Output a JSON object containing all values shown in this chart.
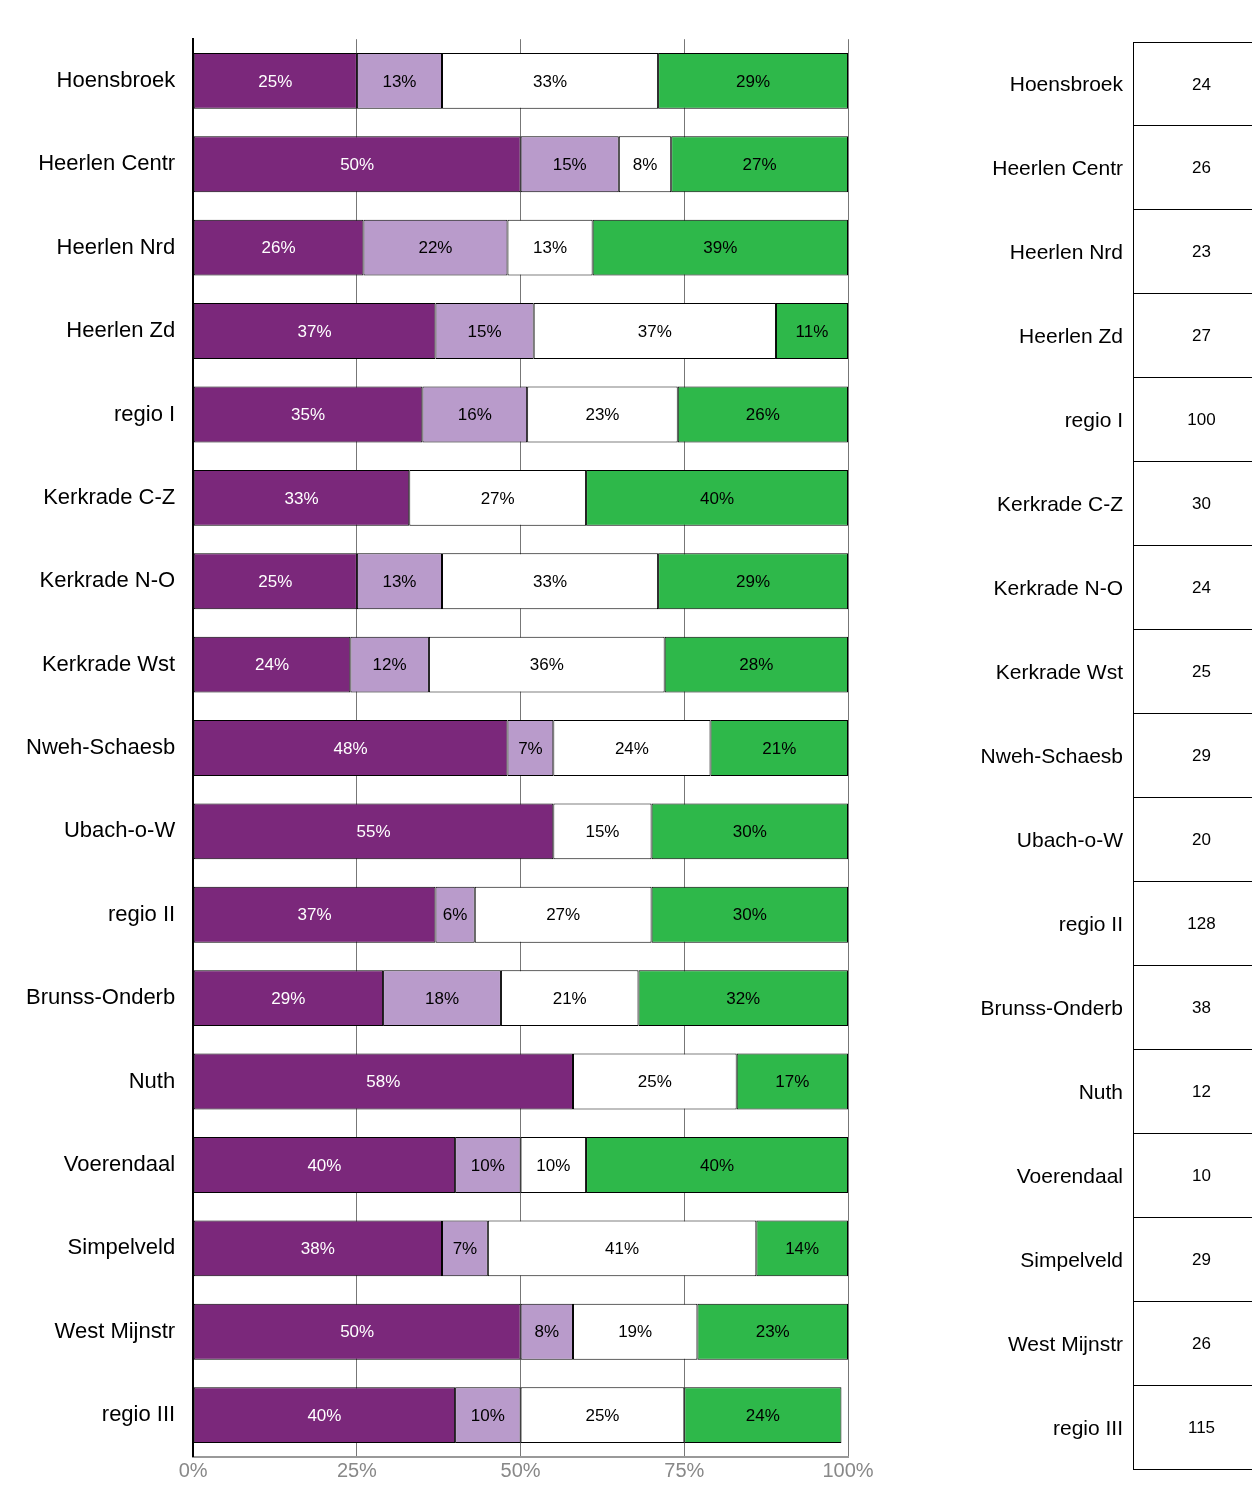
{
  "chart_data": [
    {
      "type": "bar",
      "orientation": "horizontal",
      "stacked": true,
      "categories": [
        "Hoensbroek",
        "Heerlen Centr",
        "Heerlen Nrd",
        "Heerlen Zd",
        "regio I",
        "Kerkrade C-Z",
        "Kerkrade N-O",
        "Kerkrade Wst",
        "Nweh-Schaesb",
        "Ubach-o-W",
        "regio II",
        "Brunss-Onderb",
        "Nuth",
        "Voerendaal",
        "Simpelveld",
        "West Mijnstr",
        "regio III"
      ],
      "series": [
        {
          "color": "#7b287b",
          "values": [
            25,
            50,
            26,
            37,
            35,
            33,
            25,
            24,
            48,
            55,
            37,
            29,
            58,
            40,
            38,
            50,
            40
          ],
          "value_labels": [
            "25%",
            "50%",
            "26%",
            "37%",
            "35%",
            "33%",
            "25%",
            "24%",
            "48%",
            "55%",
            "37%",
            "29%",
            "58%",
            "40%",
            "38%",
            "50%",
            "40%"
          ]
        },
        {
          "color": "#b99bcb",
          "values": [
            13,
            15,
            22,
            15,
            16,
            null,
            13,
            12,
            7,
            null,
            6,
            18,
            null,
            10,
            7,
            8,
            10
          ],
          "value_labels": [
            "13%",
            "15%",
            "22%",
            "15%",
            "16%",
            null,
            "13%",
            "12%",
            "7%",
            null,
            "6%",
            "18%",
            null,
            "10%",
            "7%",
            "8%",
            "10%"
          ]
        },
        {
          "color": "#ffffff",
          "values": [
            33,
            8,
            13,
            37,
            23,
            27,
            33,
            36,
            24,
            15,
            27,
            21,
            25,
            10,
            41,
            19,
            25
          ],
          "value_labels": [
            "33%",
            "8%",
            "13%",
            "37%",
            "23%",
            "27%",
            "33%",
            "36%",
            "24%",
            "15%",
            "27%",
            "21%",
            "25%",
            "10%",
            "41%",
            "19%",
            "25%"
          ]
        },
        {
          "color": "#2eb84a",
          "values": [
            29,
            27,
            39,
            11,
            26,
            40,
            29,
            28,
            21,
            30,
            30,
            32,
            17,
            40,
            14,
            23,
            24
          ],
          "value_labels": [
            "29%",
            "27%",
            "39%",
            "11%",
            "26%",
            "40%",
            "29%",
            "28%",
            "21%",
            "30%",
            "30%",
            "32%",
            "17%",
            "40%",
            "14%",
            "23%",
            "24%"
          ]
        }
      ],
      "xlim": [
        0,
        100
      ],
      "xticks": [
        {
          "value": 0,
          "label": "0%"
        },
        {
          "value": 25,
          "label": "25%"
        },
        {
          "value": 50,
          "label": "50%"
        },
        {
          "value": 75,
          "label": "75%"
        },
        {
          "value": 100,
          "label": "100%"
        }
      ],
      "grid": "x",
      "legend": false
    },
    {
      "type": "other",
      "categories": [
        "Hoensbroek",
        "Heerlen Centr",
        "Heerlen Nrd",
        "Heerlen Zd",
        "regio I",
        "Kerkrade C-Z",
        "Kerkrade N-O",
        "Kerkrade Wst",
        "Nweh-Schaesb",
        "Ubach-o-W",
        "regio II",
        "Brunss-Onderb",
        "Nuth",
        "Voerendaal",
        "Simpelveld",
        "West Mijnstr",
        "regio III"
      ],
      "values": [
        24,
        26,
        23,
        27,
        100,
        30,
        24,
        25,
        29,
        20,
        128,
        38,
        12,
        10,
        29,
        26,
        115
      ],
      "data_labels": true
    }
  ]
}
